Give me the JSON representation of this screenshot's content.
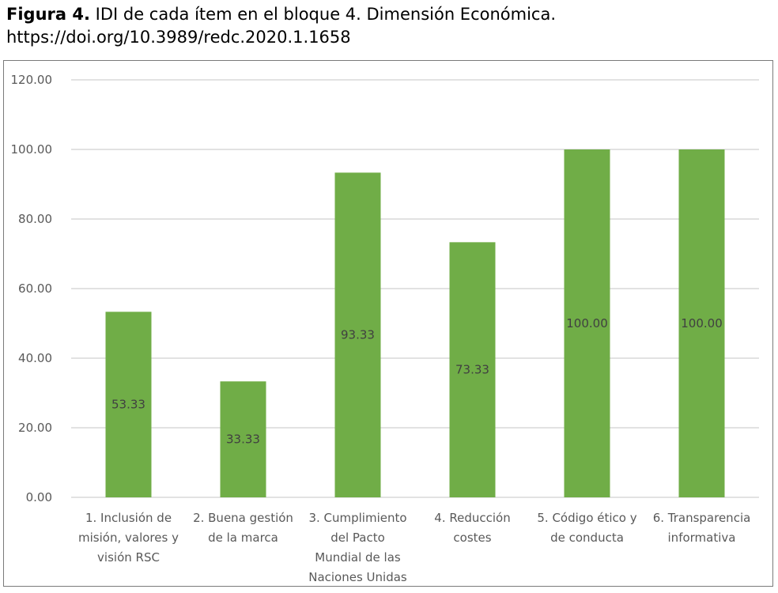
{
  "caption": {
    "label": "Figura 4.",
    "text": " IDI de cada ítem en el bloque 4. Dimensión Económica.",
    "doi": "https://doi.org/10.3989/redc.2020.1.1658"
  },
  "chart_data": {
    "type": "bar",
    "categories": [
      [
        "1. Inclusión de",
        "misión, valores y",
        "visión RSC"
      ],
      [
        "2. Buena gestión",
        "de la marca"
      ],
      [
        "3. Cumplimiento",
        "del Pacto",
        "Mundial de las",
        "Naciones Unidas"
      ],
      [
        "4. Reducción",
        "costes"
      ],
      [
        "5. Código ético y",
        "de conducta"
      ],
      [
        "6. Transparencia",
        "informativa"
      ]
    ],
    "values": [
      53.33,
      33.33,
      93.33,
      73.33,
      100.0,
      100.0
    ],
    "data_labels": [
      "53.33",
      "33.33",
      "93.33",
      "73.33",
      "100.00",
      "100.00"
    ],
    "y_ticks": [
      "0.00",
      "20.00",
      "40.00",
      "60.00",
      "80.00",
      "100.00",
      "120.00"
    ],
    "ylim": [
      0,
      120
    ],
    "grid": true,
    "legend": "none",
    "bar_color": "#70ad47",
    "grid_color": "#d9d9d9"
  }
}
